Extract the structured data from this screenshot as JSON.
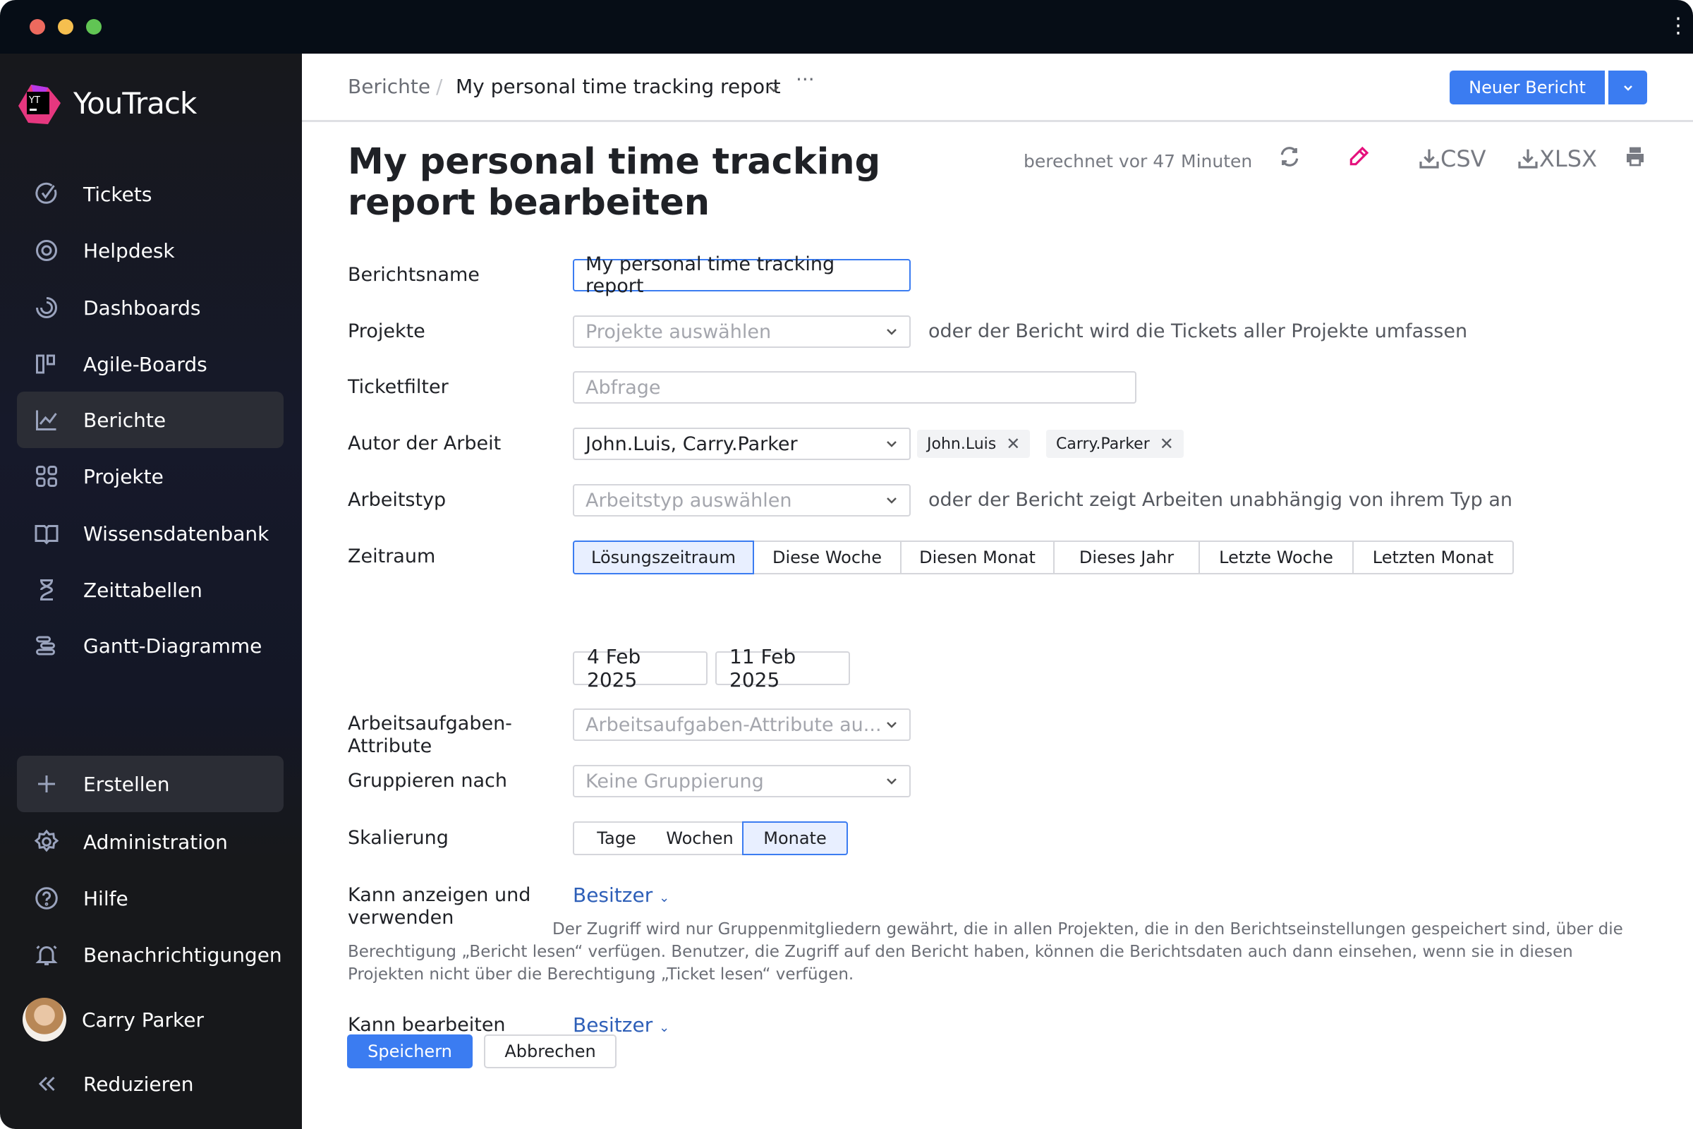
{
  "window": {
    "controls": [
      "close",
      "minimize",
      "maximize"
    ],
    "menu_icon": "kebab-icon"
  },
  "sidebar": {
    "brand": "YouTrack",
    "items": [
      {
        "label": "Tickets",
        "icon": "checkmark-circle-icon"
      },
      {
        "label": "Helpdesk",
        "icon": "lifebuoy-icon"
      },
      {
        "label": "Dashboards",
        "icon": "dashboard-gauge-icon"
      },
      {
        "label": "Agile-Boards",
        "icon": "board-icon"
      },
      {
        "label": "Berichte",
        "icon": "chart-line-icon",
        "active": true
      },
      {
        "label": "Projekte",
        "icon": "grid-icon"
      },
      {
        "label": "Wissensdatenbank",
        "icon": "book-icon"
      },
      {
        "label": "Zeittabellen",
        "icon": "hourglass-icon"
      },
      {
        "label": "Gantt-Diagramme",
        "icon": "gantt-icon"
      }
    ],
    "bottom": [
      {
        "label": "Erstellen",
        "icon": "plus-icon"
      },
      {
        "label": "Administration",
        "icon": "gear-icon"
      },
      {
        "label": "Hilfe",
        "icon": "help-circle-icon"
      },
      {
        "label": "Benachrichtigungen",
        "icon": "bell-icon"
      }
    ],
    "user": "Carry Parker",
    "collapse": "Reduzieren"
  },
  "header": {
    "breadcrumb_root": "Berichte",
    "breadcrumb_separator": "/",
    "breadcrumb_current": "My personal time tracking report",
    "more": "···",
    "new_report": "Neuer Bericht"
  },
  "page": {
    "title": "My personal time tracking report bearbeiten",
    "computed": "berechnet vor 47 Minuten",
    "csv": "CSV",
    "xlsx": "XLSX",
    "accent_edit": "#e5127d"
  },
  "form": {
    "name_label": "Berichtsname",
    "name_value": "My personal time tracking report",
    "projects_label": "Projekte",
    "projects_placeholder": "Projekte auswählen",
    "projects_hint": "oder der Bericht wird die Tickets aller Projekte umfassen",
    "filter_label": "Ticketfilter",
    "filter_placeholder": "Abfrage",
    "author_label": "Autor der Arbeit",
    "author_value": "John.Luis, Carry.Parker",
    "author_tags": [
      "John.Luis",
      "Carry.Parker"
    ],
    "worktype_label": "Arbeitstyp",
    "worktype_placeholder": "Arbeitstyp auswählen",
    "worktype_hint": "oder der Bericht zeigt Arbeiten unabhängig von ihrem Typ an",
    "period_label": "Zeitraum",
    "periods": [
      "Lösungszeitraum",
      "Diese Woche",
      "Diesen Monat",
      "Dieses Jahr",
      "Letzte Woche",
      "Letzten Monat"
    ],
    "period_selected": "Lösungszeitraum",
    "date_from": "4 Feb 2025",
    "date_to": "11 Feb 2025",
    "attrs_label": "Arbeitsaufgaben-Attribute",
    "attrs_placeholder": "Arbeitsaufgaben-Attribute au...",
    "group_label": "Gruppieren nach",
    "group_placeholder": "Keine Gruppierung",
    "scale_label": "Skalierung",
    "scales": [
      "Tage",
      "Wochen",
      "Monate"
    ],
    "scale_selected": "Monate",
    "view_label": "Kann anzeigen und verwenden",
    "view_value": "Besitzer",
    "view_desc": "Der Zugriff wird nur Gruppenmitgliedern gewährt, die in allen Projekten, die in den Berichtseinstellungen gespeichert sind, über die Berechtigung „Bericht lesen“ verfügen. Benutzer, die Zugriff auf den Bericht haben, können die Berichtsdaten auch dann einsehen, wenn sie in diesen Projekten nicht über die Berechtigung „Ticket lesen“ verfügen.",
    "edit_label": "Kann bearbeiten",
    "edit_value": "Besitzer",
    "save": "Speichern",
    "cancel": "Abbrechen"
  }
}
